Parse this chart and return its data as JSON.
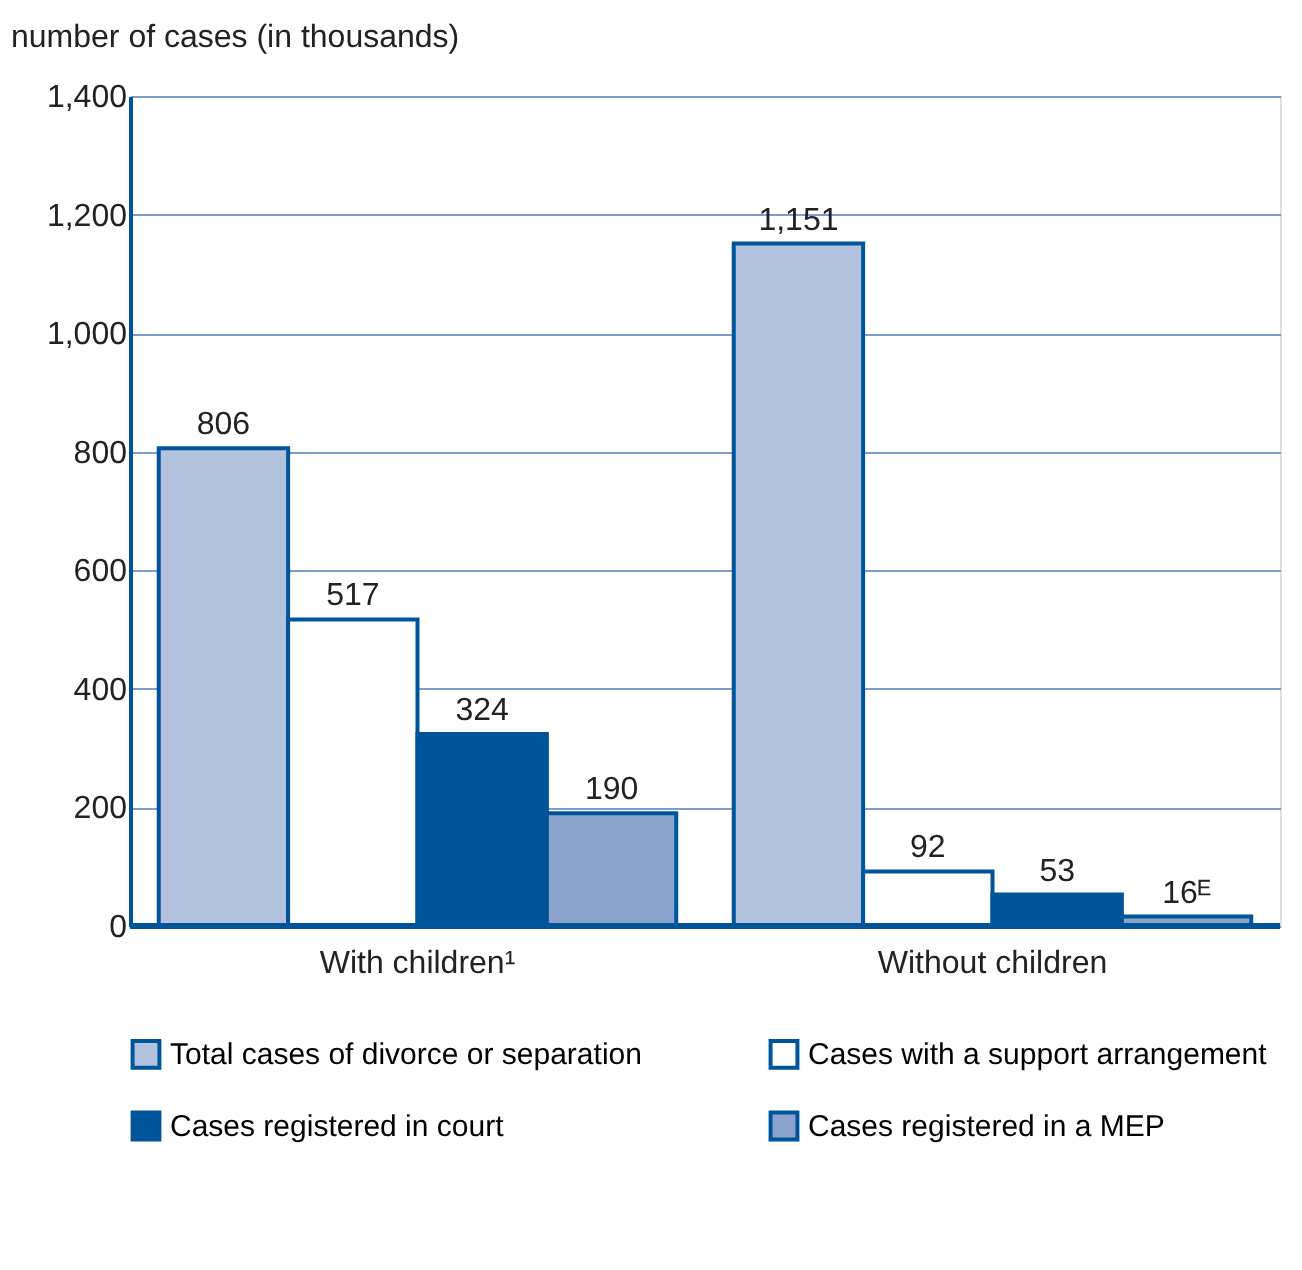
{
  "chart_data": {
    "type": "bar",
    "ylabel": "number of cases (in thousands)",
    "categories": [
      "With children¹",
      "Without children"
    ],
    "series": [
      {
        "name": "Total cases of divorce or separation",
        "color": "#b3c2de",
        "values": [
          806,
          1151
        ],
        "value_labels": [
          "806",
          "1,151"
        ]
      },
      {
        "name": "Cases with a support arrangement",
        "color": "#ffffff",
        "values": [
          517,
          92
        ],
        "value_labels": [
          "517",
          "92"
        ]
      },
      {
        "name": "Cases registered in court",
        "color": "#00559a",
        "values": [
          324,
          53
        ],
        "value_labels": [
          "324",
          "53"
        ]
      },
      {
        "name": "Cases registered in a MEP",
        "color": "#8aa3cc",
        "values": [
          190,
          16
        ],
        "value_labels": [
          "190",
          "16ᴱ"
        ]
      }
    ],
    "ylim": [
      0,
      1400
    ],
    "yticks": [
      0,
      200,
      400,
      600,
      800,
      {
        "value": 1000,
        "label": "1,000"
      },
      {
        "value": 1200,
        "label": "1,200"
      },
      {
        "value": 1400,
        "label": "1,400"
      }
    ],
    "grid": "y",
    "legend": "bottom"
  }
}
